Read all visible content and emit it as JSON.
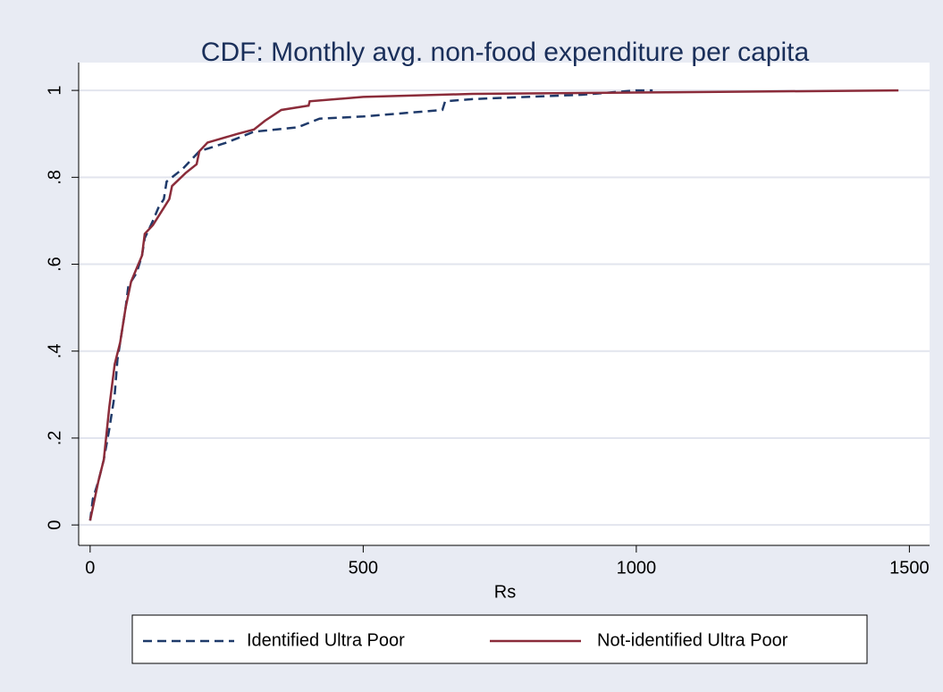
{
  "chart_data": {
    "type": "line",
    "title": "CDF: Monthly avg. non-food expenditure per capita",
    "x_label": "Rs",
    "xlim": [
      -21,
      1537
    ],
    "xticks": [
      0,
      500,
      1000,
      1500
    ],
    "ylim": [
      -0.047,
      1.064
    ],
    "yticks": [
      0,
      {
        "value": 0.2,
        "label": ".2"
      },
      {
        "value": 0.4,
        "label": ".4"
      },
      {
        "value": 0.6,
        "label": ".6"
      },
      {
        "value": 0.8,
        "label": ".8"
      },
      1
    ],
    "grid": true,
    "series": [
      {
        "name": "Identified Ultra Poor",
        "color": "#1f3a6a",
        "dash": true,
        "x": [
          0,
          5,
          15,
          25,
          35,
          45,
          50,
          55,
          65,
          70,
          85,
          95,
          100,
          115,
          125,
          135,
          140,
          170,
          200,
          250,
          300,
          380,
          420,
          500,
          645,
          650,
          700,
          900,
          1000,
          1030
        ],
        "values": [
          0.01,
          0.06,
          0.1,
          0.15,
          0.22,
          0.3,
          0.38,
          0.42,
          0.5,
          0.55,
          0.58,
          0.62,
          0.66,
          0.7,
          0.73,
          0.75,
          0.79,
          0.82,
          0.86,
          0.88,
          0.905,
          0.915,
          0.935,
          0.94,
          0.955,
          0.975,
          0.98,
          0.99,
          1.0,
          1.0
        ]
      },
      {
        "name": "Not-identified Ultra Poor",
        "color": "#8b2c3a",
        "dash": false,
        "x": [
          0,
          5,
          15,
          25,
          35,
          45,
          55,
          65,
          75,
          85,
          95,
          100,
          115,
          130,
          145,
          150,
          175,
          195,
          200,
          215,
          270,
          300,
          320,
          350,
          400,
          402,
          500,
          700,
          1000,
          1480
        ],
        "values": [
          0.01,
          0.04,
          0.1,
          0.15,
          0.27,
          0.37,
          0.42,
          0.5,
          0.56,
          0.59,
          0.62,
          0.67,
          0.69,
          0.72,
          0.75,
          0.78,
          0.81,
          0.83,
          0.86,
          0.88,
          0.9,
          0.91,
          0.93,
          0.955,
          0.965,
          0.975,
          0.985,
          0.992,
          0.995,
          1.0
        ]
      }
    ]
  }
}
